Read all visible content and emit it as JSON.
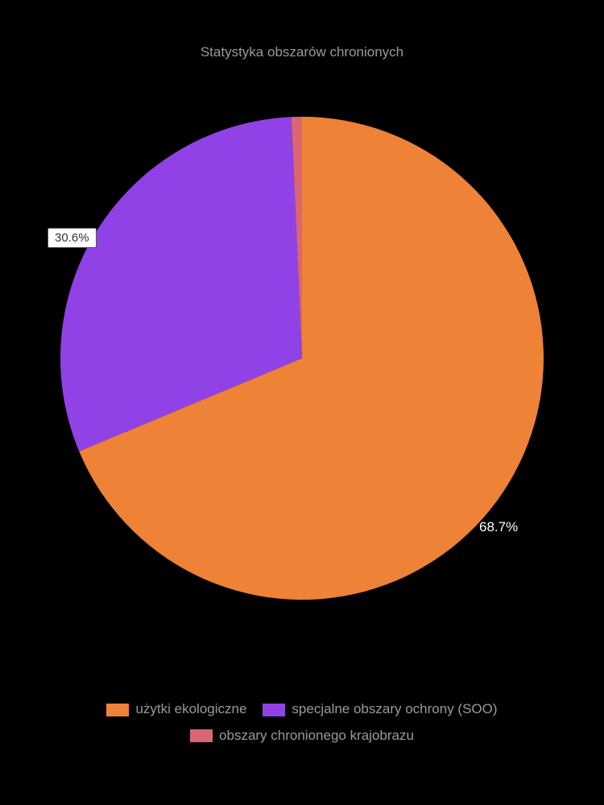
{
  "chart": {
    "type": "pie",
    "title": "Statystyka obszarów chronionych",
    "title_color": "#9a9a95",
    "title_fontsize": 17,
    "background_color": "#000000",
    "slices": [
      {
        "label": "użytki ekologiczne",
        "value": 68.7,
        "color": "#ee8237",
        "display": "68.7%"
      },
      {
        "label": "specjalne obszary ochrony (SOO)",
        "value": 30.6,
        "color": "#9142e6",
        "display": "30.6%"
      },
      {
        "label": "obszary chronionego krajobrazu",
        "value": 0.7,
        "color": "#da6674",
        "display": ""
      }
    ],
    "label_box_bg": "#ffffff",
    "label_box_text": "#333333",
    "pct_text_color": "#ffffff",
    "legend_text_color": "#9a9a95",
    "legend_fontsize": 17,
    "pie_radius": 300,
    "start_angle_deg": 90
  }
}
